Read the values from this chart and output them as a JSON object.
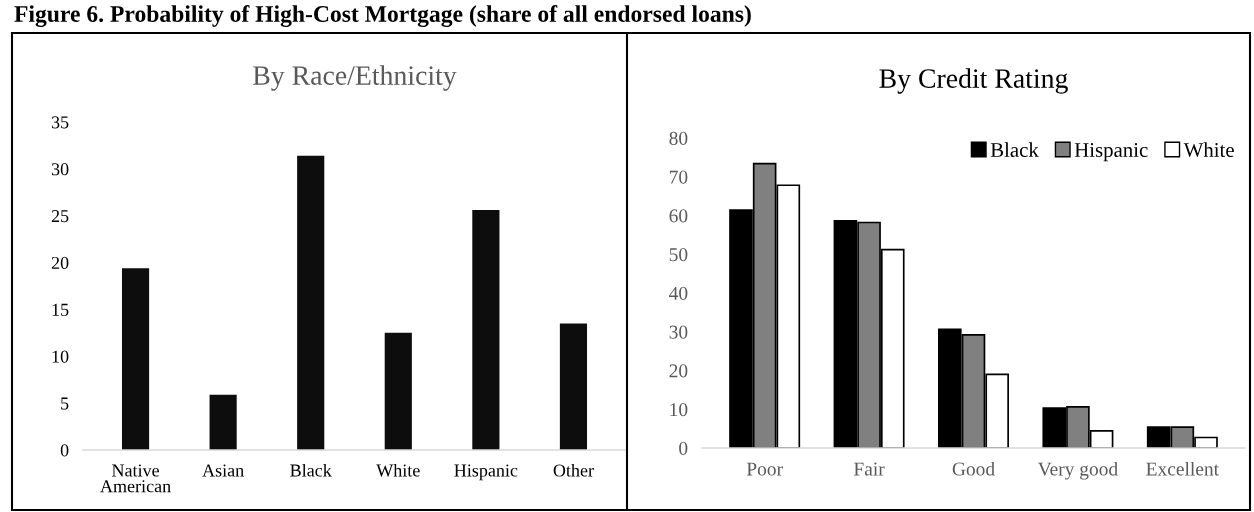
{
  "chart_data": [
    {
      "type": "bar",
      "title": "Figure 6. Probability of High-Cost Mortgage (share of all endorsed loans)",
      "subtitle": "By Race/Ethnicity",
      "categories": [
        "Native\nAmerican",
        "Asian",
        "Black",
        "White",
        "Hispanic",
        "Other"
      ],
      "values": [
        19.4,
        5.9,
        31.4,
        12.5,
        25.6,
        13.5
      ],
      "color": "#0d0d0d",
      "ylim": [
        0,
        35
      ],
      "yticks": [
        0,
        5,
        10,
        15,
        20,
        25,
        30,
        35
      ],
      "grid": false,
      "legend": false
    },
    {
      "type": "bar",
      "title": "By Credit Rating",
      "categories": [
        "Poor",
        "Fair",
        "Good",
        "Very good",
        "Excellent"
      ],
      "series": [
        {
          "name": "Black",
          "color": "#000000",
          "values": [
            61.4,
            58.6,
            30.6,
            10.3,
            5.4
          ]
        },
        {
          "name": "Hispanic",
          "color": "#808080",
          "values": [
            73.4,
            58.2,
            29.2,
            10.6,
            5.4
          ]
        },
        {
          "name": "White",
          "color": "#ffffff",
          "values": [
            67.8,
            51.2,
            19.0,
            4.4,
            2.7
          ]
        }
      ],
      "ylim": [
        0,
        80
      ],
      "yticks": [
        0,
        10,
        20,
        30,
        40,
        50,
        60,
        70,
        80
      ],
      "grid": false,
      "legend": "top right"
    }
  ]
}
